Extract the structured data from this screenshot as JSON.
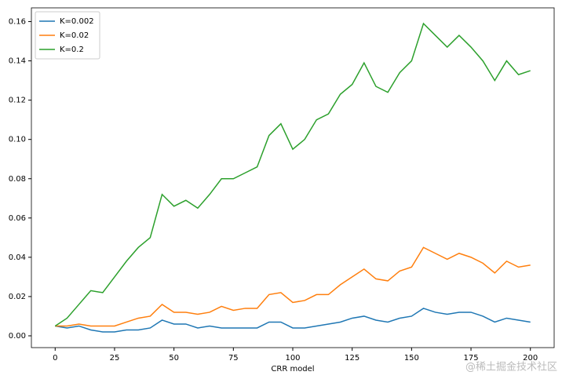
{
  "chart_data": {
    "type": "line",
    "xlabel": "CRR model",
    "x": [
      0,
      5,
      10,
      15,
      20,
      25,
      30,
      35,
      40,
      45,
      50,
      55,
      60,
      65,
      70,
      75,
      80,
      85,
      90,
      95,
      100,
      105,
      110,
      115,
      120,
      125,
      130,
      135,
      140,
      145,
      150,
      155,
      160,
      165,
      170,
      175,
      180,
      185,
      190,
      195,
      200
    ],
    "series": [
      {
        "name": "K=0.002",
        "color": "#1f77b4",
        "values": [
          0.005,
          0.004,
          0.005,
          0.003,
          0.002,
          0.002,
          0.003,
          0.003,
          0.004,
          0.008,
          0.006,
          0.006,
          0.004,
          0.005,
          0.004,
          0.004,
          0.004,
          0.004,
          0.007,
          0.007,
          0.004,
          0.004,
          0.005,
          0.006,
          0.007,
          0.009,
          0.01,
          0.008,
          0.007,
          0.009,
          0.01,
          0.014,
          0.012,
          0.011,
          0.012,
          0.012,
          0.01,
          0.007,
          0.009,
          0.008,
          0.007
        ]
      },
      {
        "name": "K=0.02",
        "color": "#ff7f0e",
        "values": [
          0.005,
          0.005,
          0.006,
          0.005,
          0.005,
          0.005,
          0.007,
          0.009,
          0.01,
          0.016,
          0.012,
          0.012,
          0.011,
          0.012,
          0.015,
          0.013,
          0.014,
          0.014,
          0.021,
          0.022,
          0.017,
          0.018,
          0.021,
          0.021,
          0.026,
          0.03,
          0.034,
          0.029,
          0.028,
          0.033,
          0.035,
          0.045,
          0.042,
          0.039,
          0.042,
          0.04,
          0.037,
          0.032,
          0.038,
          0.035,
          0.036
        ]
      },
      {
        "name": "K=0.2",
        "color": "#2ca02c",
        "values": [
          0.005,
          0.009,
          0.016,
          0.023,
          0.022,
          0.03,
          0.038,
          0.045,
          0.05,
          0.072,
          0.066,
          0.069,
          0.065,
          0.072,
          0.08,
          0.08,
          0.083,
          0.086,
          0.102,
          0.108,
          0.095,
          0.1,
          0.11,
          0.113,
          0.123,
          0.128,
          0.139,
          0.127,
          0.124,
          0.134,
          0.14,
          0.159,
          0.153,
          0.147,
          0.153,
          0.147,
          0.14,
          0.13,
          0.14,
          0.133,
          0.135
        ]
      }
    ],
    "xlim": [
      -10,
      210
    ],
    "xticks": [
      0,
      25,
      50,
      75,
      100,
      125,
      150,
      175,
      200
    ],
    "ylim": [
      -0.006,
      0.167
    ],
    "yticks": [
      {
        "value": 0,
        "label": "0.00"
      },
      {
        "value": 0.02,
        "label": "0.02"
      },
      {
        "value": 0.04,
        "label": "0.04"
      },
      {
        "value": 0.06,
        "label": "0.06"
      },
      {
        "value": 0.08,
        "label": "0.08"
      },
      {
        "value": 0.1,
        "label": "0.10"
      },
      {
        "value": 0.12,
        "label": "0.12"
      },
      {
        "value": 0.14,
        "label": "0.14"
      },
      {
        "value": 0.16,
        "label": "0.16"
      }
    ],
    "grid": false,
    "legend": "upper left"
  },
  "watermark": "@稀土掘金技术社区"
}
